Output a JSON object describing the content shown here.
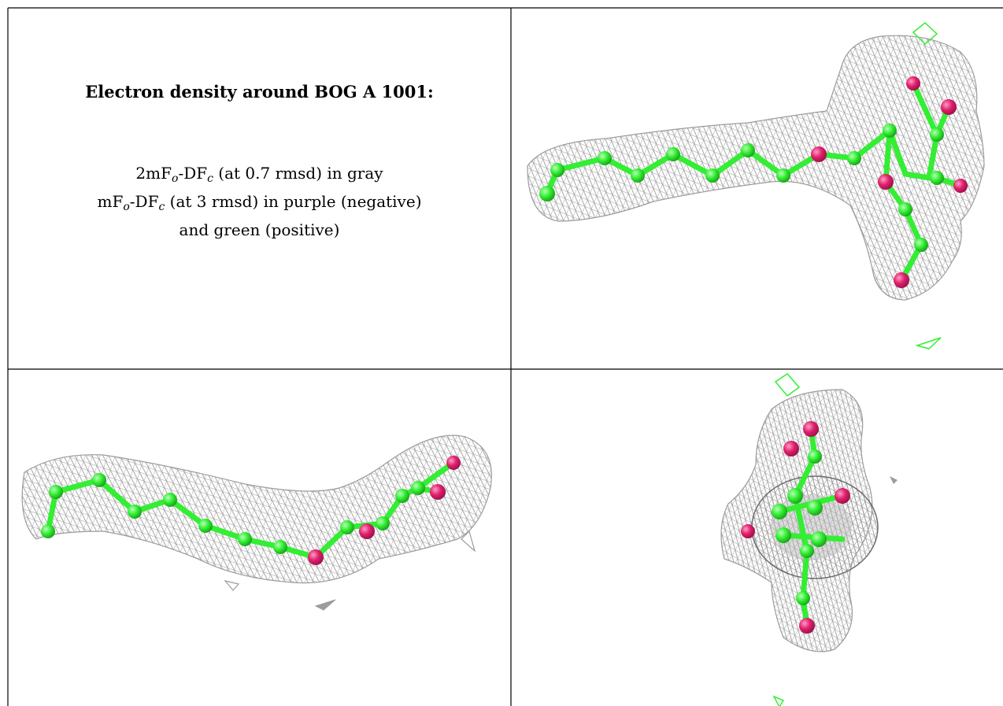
{
  "caption": {
    "title": "Electron density around BOG A 1001:",
    "line1_prefix": "2mF",
    "line1_sub1": "o",
    "line1_mid": "-DF",
    "line1_sub2": "c",
    "line1_suffix": " (at 0.7 rmsd) in gray",
    "line2_prefix": "mF",
    "line2_sub1": "o",
    "line2_mid": "-DF",
    "line2_sub2": "c",
    "line2_suffix": " (at 3 rmsd) in purple (negative)",
    "line3": "and green (positive)"
  },
  "colors": {
    "mesh": "#a8a8a8",
    "carbon": "#33ee33",
    "oxygen": "#e0206e",
    "positive_density": "#33ee33",
    "grid_line": "#000000"
  }
}
